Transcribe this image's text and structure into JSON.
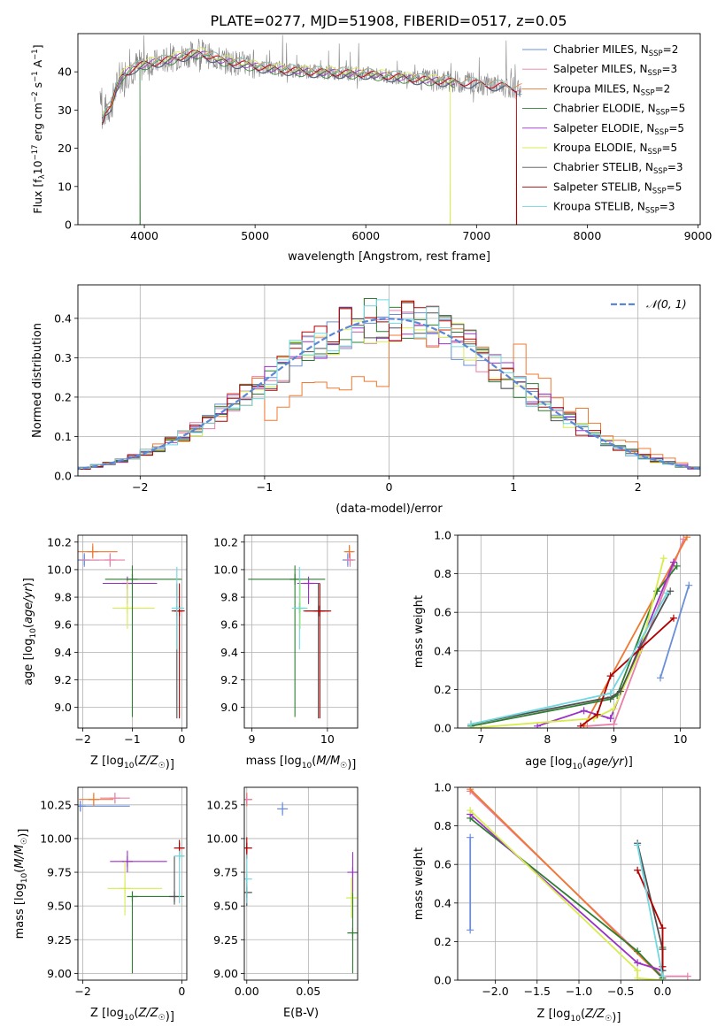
{
  "title": "PLATE=0277, MJD=51908, FIBERID=0517, z=0.05",
  "colors": {
    "chabrier_miles": "#6a8fd8",
    "salpeter_miles": "#e87fa8",
    "kroupa_miles": "#f07830",
    "chabrier_elodie": "#2e7d32",
    "salpeter_elodie": "#9b30c8",
    "kroupa_elodie": "#d8ec50",
    "chabrier_stelib": "#505050",
    "salpeter_stelib": "#b00000",
    "kroupa_stelib": "#70d8e0",
    "data": "#888888",
    "normal": "#5b87d6"
  },
  "chart_data": [
    {
      "id": "spectrum",
      "type": "line",
      "xlabel": "wavelength [Angstrom, rest frame]",
      "ylabel": "Flux [fλ10⁻¹⁷ erg cm⁻² s⁻¹ A⁻¹]",
      "xlim": [
        3400,
        9020
      ],
      "ylim": [
        0,
        50
      ],
      "xticks": [
        4000,
        5000,
        6000,
        7000,
        8000,
        9000
      ],
      "yticks": [
        0,
        10,
        20,
        30,
        40
      ],
      "legend_position": "top-right",
      "legend": [
        {
          "label": "Chabrier MILES, N",
          "sub": "SSP",
          "suffix": "=2",
          "color_key": "chabrier_miles"
        },
        {
          "label": "Salpeter MILES, N",
          "sub": "SSP",
          "suffix": "=3",
          "color_key": "salpeter_miles"
        },
        {
          "label": "Kroupa MILES, N",
          "sub": "SSP",
          "suffix": "=2",
          "color_key": "kroupa_miles"
        },
        {
          "label": "Chabrier ELODIE, N",
          "sub": "SSP",
          "suffix": "=5",
          "color_key": "chabrier_elodie"
        },
        {
          "label": "Salpeter ELODIE, N",
          "sub": "SSP",
          "suffix": "=5",
          "color_key": "salpeter_elodie"
        },
        {
          "label": "Kroupa ELODIE, N",
          "sub": "SSP",
          "suffix": "=5",
          "color_key": "kroupa_elodie"
        },
        {
          "label": "Chabrier STELIB, N",
          "sub": "SSP",
          "suffix": "=3",
          "color_key": "chabrier_stelib"
        },
        {
          "label": "Salpeter STELIB, N",
          "sub": "SSP",
          "suffix": "=5",
          "color_key": "salpeter_stelib"
        },
        {
          "label": "Kroupa STELIB, N",
          "sub": "SSP",
          "suffix": "=3",
          "color_key": "kroupa_stelib"
        }
      ],
      "model_envelope": {
        "x": [
          3620,
          3650,
          3700,
          3750,
          3800,
          3900,
          4000,
          4200,
          4400,
          4500,
          4700,
          4900,
          5100,
          5500,
          6000,
          6500,
          7000,
          7300,
          7500
        ],
        "y": [
          27,
          30,
          31,
          36,
          39,
          41,
          42,
          43,
          44.5,
          45,
          43,
          42,
          41,
          40,
          39.5,
          38,
          37,
          36,
          35
        ]
      },
      "model_ranges": [
        {
          "model": "chabrier_miles",
          "x_end": 7410
        },
        {
          "model": "salpeter_miles",
          "x_end": 7410
        },
        {
          "model": "kroupa_miles",
          "x_end": 7410
        },
        {
          "model": "chabrier_elodie",
          "x_end": 6800,
          "drop_at": 3960
        },
        {
          "model": "salpeter_elodie",
          "x_end": 6800
        },
        {
          "model": "kroupa_elodie",
          "x_end": 6800,
          "drop_at": 6760
        },
        {
          "model": "chabrier_stelib",
          "x_end": 7360
        },
        {
          "model": "salpeter_stelib",
          "x_end": 7360,
          "drop_at": 7360
        },
        {
          "model": "kroupa_stelib",
          "x_end": 7360
        }
      ]
    },
    {
      "id": "residuals",
      "type": "line",
      "xlabel": "(data-model)/error",
      "ylabel": "Normed distribution",
      "xlim": [
        -2.5,
        2.5
      ],
      "ylim": [
        0,
        0.485
      ],
      "xticks": [
        -2,
        -1,
        0,
        1,
        2
      ],
      "yticks": [
        0.0,
        0.1,
        0.2,
        0.3,
        0.4
      ],
      "grid": true,
      "legend_position": "top-right",
      "legend": [
        {
          "label": "𝒩(0, 1)",
          "color_key": "normal",
          "dashed": true
        }
      ],
      "bin_width": 0.1
    },
    {
      "id": "age_vs_z",
      "type": "scatter",
      "xlabel": "Z [log10(Z/Z☉)]",
      "ylabel": "age  [log10(age/yr)]",
      "xlim": [
        -2.1,
        0.1
      ],
      "ylim": [
        8.85,
        10.25
      ],
      "xticks": [
        -2,
        -1,
        0
      ],
      "yticks": [
        9.0,
        9.2,
        9.4,
        9.6,
        9.8,
        10.0,
        10.2
      ],
      "grid": true,
      "points": [
        {
          "model": "chabrier_miles",
          "x": -1.97,
          "y": 10.07,
          "xerr": [
            0.2,
            0.3
          ],
          "yerr": [
            0.05,
            0.05
          ]
        },
        {
          "model": "kroupa_miles",
          "x": -1.8,
          "y": 10.13,
          "xerr": [
            0.3,
            0.5
          ],
          "yerr": [
            0.05,
            0.06
          ]
        },
        {
          "model": "salpeter_miles",
          "x": -1.45,
          "y": 10.07,
          "xerr": [
            0.6,
            0.3
          ],
          "yerr": [
            0.05,
            0.05
          ]
        },
        {
          "model": "salpeter_elodie",
          "x": -1.1,
          "y": 9.9,
          "xerr": [
            0.5,
            0.6
          ],
          "yerr": [
            0.15,
            0.05
          ]
        },
        {
          "model": "kroupa_elodie",
          "x": -1.1,
          "y": 9.72,
          "xerr": [
            0.3,
            0.55
          ],
          "yerr": [
            0.15,
            0.2
          ]
        },
        {
          "model": "chabrier_elodie",
          "x": -1.0,
          "y": 9.93,
          "xerr": [
            0.55,
            1.0
          ],
          "yerr": [
            1.0,
            0.1
          ]
        },
        {
          "model": "chabrier_stelib",
          "x": -0.1,
          "y": 9.7,
          "xerr": [
            0.05,
            0.05
          ],
          "yerr": [
            0.78,
            0.2
          ]
        },
        {
          "model": "salpeter_stelib",
          "x": -0.05,
          "y": 9.7,
          "xerr": [
            0.05,
            0.05
          ],
          "yerr": [
            0.78,
            0.2
          ]
        },
        {
          "model": "kroupa_stelib",
          "x": -0.1,
          "y": 9.72,
          "xerr": [
            0.0,
            0.15
          ],
          "yerr": [
            0.3,
            0.3
          ]
        }
      ]
    },
    {
      "id": "age_vs_mass",
      "type": "scatter",
      "xlabel": "mass [log10(M/M☉)]",
      "ylabel": "",
      "xlim": [
        8.9,
        10.4
      ],
      "ylim": [
        8.85,
        10.25
      ],
      "xticks": [
        9,
        10
      ],
      "yticks": [
        9.0,
        9.2,
        9.4,
        9.6,
        9.8,
        10.0,
        10.2
      ],
      "grid": true,
      "points": [
        {
          "model": "chabrier_miles",
          "x": 10.27,
          "y": 10.07,
          "xerr": [
            0.05,
            0.05
          ],
          "yerr": [
            0.05,
            0.05
          ]
        },
        {
          "model": "kroupa_miles",
          "x": 10.29,
          "y": 10.13,
          "xerr": [
            0.05,
            0.05
          ],
          "yerr": [
            0.05,
            0.05
          ]
        },
        {
          "model": "salpeter_miles",
          "x": 10.3,
          "y": 10.07,
          "xerr": [
            0.05,
            0.05
          ],
          "yerr": [
            0.05,
            0.05
          ]
        },
        {
          "model": "salpeter_elodie",
          "x": 9.75,
          "y": 9.9,
          "xerr": [
            0.15,
            0.15
          ],
          "yerr": [
            0.15,
            0.05
          ]
        },
        {
          "model": "kroupa_elodie",
          "x": 9.64,
          "y": 9.72,
          "xerr": [
            0.1,
            0.1
          ],
          "yerr": [
            0.15,
            0.2
          ]
        },
        {
          "model": "chabrier_elodie",
          "x": 9.57,
          "y": 9.93,
          "xerr": [
            0.62,
            0.4
          ],
          "yerr": [
            1.0,
            0.1
          ]
        },
        {
          "model": "chabrier_stelib",
          "x": 9.88,
          "y": 9.7,
          "xerr": [
            0.2,
            0.15
          ],
          "yerr": [
            0.78,
            0.2
          ]
        },
        {
          "model": "salpeter_stelib",
          "x": 9.9,
          "y": 9.7,
          "xerr": [
            0.2,
            0.15
          ],
          "yerr": [
            0.78,
            0.2
          ]
        },
        {
          "model": "kroupa_stelib",
          "x": 9.63,
          "y": 9.72,
          "xerr": [
            0.1,
            0.1
          ],
          "yerr": [
            0.3,
            0.3
          ]
        }
      ]
    },
    {
      "id": "weight_vs_age",
      "type": "line",
      "xlabel": "age  [log10(age/yr)]",
      "ylabel": "mass weight",
      "xlim": [
        6.65,
        10.3
      ],
      "ylim": [
        0,
        1.0
      ],
      "xticks": [
        7,
        8,
        9,
        10
      ],
      "yticks": [
        0.0,
        0.2,
        0.4,
        0.6,
        0.8,
        1.0
      ],
      "grid": true,
      "series": [
        {
          "model": "chabrier_miles",
          "x": [
            9.7,
            10.13
          ],
          "y": [
            0.26,
            0.74
          ]
        },
        {
          "model": "salpeter_miles",
          "x": [
            8.6,
            9.0,
            10.05
          ],
          "y": [
            0.01,
            0.02,
            0.98
          ]
        },
        {
          "model": "kroupa_miles",
          "x": [
            8.55,
            10.1
          ],
          "y": [
            0.01,
            0.99
          ]
        },
        {
          "model": "chabrier_elodie",
          "x": [
            6.85,
            8.95,
            9.05,
            9.65,
            9.95
          ],
          "y": [
            0.01,
            0.15,
            0.17,
            0.71,
            0.84
          ]
        },
        {
          "model": "salpeter_elodie",
          "x": [
            7.85,
            8.55,
            8.95,
            9.9
          ],
          "y": [
            0.01,
            0.09,
            0.05,
            0.86
          ]
        },
        {
          "model": "kroupa_elodie",
          "x": [
            6.85,
            8.7,
            9.0,
            9.4,
            9.75
          ],
          "y": [
            0.0,
            0.05,
            0.1,
            0.4,
            0.88
          ]
        },
        {
          "model": "chabrier_stelib",
          "x": [
            6.85,
            8.95,
            9.1,
            9.4,
            9.85
          ],
          "y": [
            0.02,
            0.16,
            0.19,
            0.42,
            0.71
          ]
        },
        {
          "model": "salpeter_stelib",
          "x": [
            8.5,
            8.75,
            8.95,
            9.9
          ],
          "y": [
            0.01,
            0.07,
            0.27,
            0.57
          ]
        },
        {
          "model": "kroupa_stelib",
          "x": [
            6.85,
            8.95,
            9.8
          ],
          "y": [
            0.02,
            0.18,
            0.7
          ]
        }
      ]
    },
    {
      "id": "mass_vs_z",
      "type": "scatter",
      "xlabel": "Z [log10(Z/Z☉)]",
      "ylabel": "mass [log10(M/M☉)]",
      "xlim": [
        -2.1,
        0.1
      ],
      "ylim": [
        8.95,
        10.38
      ],
      "xticks": [
        -2,
        0
      ],
      "yticks": [
        9.0,
        9.25,
        9.5,
        9.75,
        10.0,
        10.25
      ],
      "grid": true,
      "points": [
        {
          "model": "chabrier_miles",
          "x": -2.05,
          "y": 10.24,
          "xerr": [
            0.05,
            1.0
          ],
          "yerr": [
            0.04,
            0.04
          ]
        },
        {
          "model": "kroupa_miles",
          "x": -1.78,
          "y": 10.29,
          "xerr": [
            0.3,
            0.4
          ],
          "yerr": [
            0.05,
            0.05
          ]
        },
        {
          "model": "salpeter_miles",
          "x": -1.35,
          "y": 10.3,
          "xerr": [
            0.3,
            0.3
          ],
          "yerr": [
            0.04,
            0.04
          ]
        },
        {
          "model": "salpeter_elodie",
          "x": -1.1,
          "y": 9.83,
          "xerr": [
            0.35,
            0.8
          ],
          "yerr": [
            0.08,
            0.08
          ]
        },
        {
          "model": "kroupa_elodie",
          "x": -1.15,
          "y": 9.63,
          "xerr": [
            0.35,
            0.75
          ],
          "yerr": [
            0.2,
            0.2
          ]
        },
        {
          "model": "chabrier_elodie",
          "x": -1.0,
          "y": 9.57,
          "xerr": [
            0.0,
            1.05
          ],
          "yerr": [
            0.57,
            0.0
          ]
        },
        {
          "model": "chabrier_stelib",
          "x": -0.15,
          "y": 9.57,
          "xerr": [
            0.05,
            0.05
          ],
          "yerr": [
            0.06,
            0.3
          ]
        },
        {
          "model": "salpeter_stelib",
          "x": -0.05,
          "y": 9.93,
          "xerr": [
            0.0,
            0.1
          ],
          "yerr": [
            0.08,
            0.06
          ]
        },
        {
          "model": "kroupa_stelib",
          "x": -0.05,
          "y": 9.87,
          "xerr": [
            0.0,
            0.1
          ],
          "yerr": [
            0.35,
            0.0
          ]
        }
      ]
    },
    {
      "id": "mass_vs_ebv",
      "type": "scatter",
      "xlabel": "E(B-V)",
      "ylabel": "",
      "xlim": [
        -0.002,
        0.09
      ],
      "ylim": [
        8.95,
        10.38
      ],
      "xticks": [
        0.0,
        0.05
      ],
      "ytick_labels_shown": true,
      "yticks": [
        9.0,
        9.25,
        9.5,
        9.75,
        10.0,
        10.25
      ],
      "grid": true,
      "points": [
        {
          "model": "chabrier_miles",
          "x": 0.029,
          "y": 10.22,
          "xerr": [
            0,
            0
          ],
          "yerr": [
            0.05,
            0.05
          ]
        },
        {
          "model": "kroupa_miles",
          "x": 0.0,
          "y": 10.29,
          "xerr": [
            0,
            0
          ],
          "yerr": [
            0.05,
            0.05
          ]
        },
        {
          "model": "salpeter_miles",
          "x": 0.0,
          "y": 10.29,
          "xerr": [
            0,
            0
          ],
          "yerr": [
            0.04,
            0.04
          ]
        },
        {
          "model": "salpeter_elodie",
          "x": 0.086,
          "y": 9.75,
          "xerr": [
            0,
            0
          ],
          "yerr": [
            0.15,
            0.15
          ]
        },
        {
          "model": "kroupa_elodie",
          "x": 0.085,
          "y": 9.56,
          "xerr": [
            0,
            0
          ],
          "yerr": [
            0.15,
            0.15
          ]
        },
        {
          "model": "chabrier_elodie",
          "x": 0.086,
          "y": 9.3,
          "xerr": [
            0,
            0
          ],
          "yerr": [
            0.3,
            0.3
          ]
        },
        {
          "model": "chabrier_stelib",
          "x": 0.0,
          "y": 9.6,
          "xerr": [
            0,
            0
          ],
          "yerr": [
            0.1,
            0.1
          ]
        },
        {
          "model": "salpeter_stelib",
          "x": 0.0,
          "y": 9.93,
          "xerr": [
            0,
            0
          ],
          "yerr": [
            0.08,
            0.08
          ]
        },
        {
          "model": "kroupa_stelib",
          "x": 0.0,
          "y": 9.7,
          "xerr": [
            0,
            0
          ],
          "yerr": [
            0.18,
            0.18
          ]
        }
      ]
    },
    {
      "id": "weight_vs_z",
      "type": "line",
      "xlabel": "Z [log10(Z/Z☉)]",
      "ylabel": "mass weight",
      "xlim": [
        -2.45,
        0.45
      ],
      "ylim": [
        0,
        1.0
      ],
      "xticks": [
        -2.0,
        -1.5,
        -1.0,
        -0.5,
        0.0
      ],
      "yticks": [
        0.0,
        0.2,
        0.4,
        0.6,
        0.8,
        1.0
      ],
      "grid": true,
      "series": [
        {
          "model": "chabrier_miles",
          "x": [
            -2.3,
            -2.3
          ],
          "y": [
            0.74,
            0.26
          ]
        },
        {
          "model": "salpeter_miles",
          "x": [
            -2.3,
            0.0,
            0.3
          ],
          "y": [
            0.98,
            0.02,
            0.02
          ]
        },
        {
          "model": "kroupa_miles",
          "x": [
            -2.3,
            0.0
          ],
          "y": [
            0.99,
            0.01
          ]
        },
        {
          "model": "chabrier_elodie",
          "x": [
            -2.3,
            -0.3,
            0.0,
            0.0
          ],
          "y": [
            0.84,
            0.15,
            0.01,
            0.17
          ]
        },
        {
          "model": "salpeter_elodie",
          "x": [
            -2.3,
            -0.3,
            0.0
          ],
          "y": [
            0.86,
            0.09,
            0.05
          ]
        },
        {
          "model": "kroupa_elodie",
          "x": [
            -2.3,
            -0.3,
            -0.3,
            0.0
          ],
          "y": [
            0.88,
            0.05,
            0.01,
            0.0
          ]
        },
        {
          "model": "chabrier_stelib",
          "x": [
            -0.3,
            0.0,
            0.0
          ],
          "y": [
            0.71,
            0.16,
            0.05
          ]
        },
        {
          "model": "salpeter_stelib",
          "x": [
            -0.3,
            0.0,
            0.0
          ],
          "y": [
            0.57,
            0.27,
            0.07
          ]
        },
        {
          "model": "kroupa_stelib",
          "x": [
            -0.3,
            0.0
          ],
          "y": [
            0.7,
            0.02
          ]
        }
      ]
    }
  ]
}
